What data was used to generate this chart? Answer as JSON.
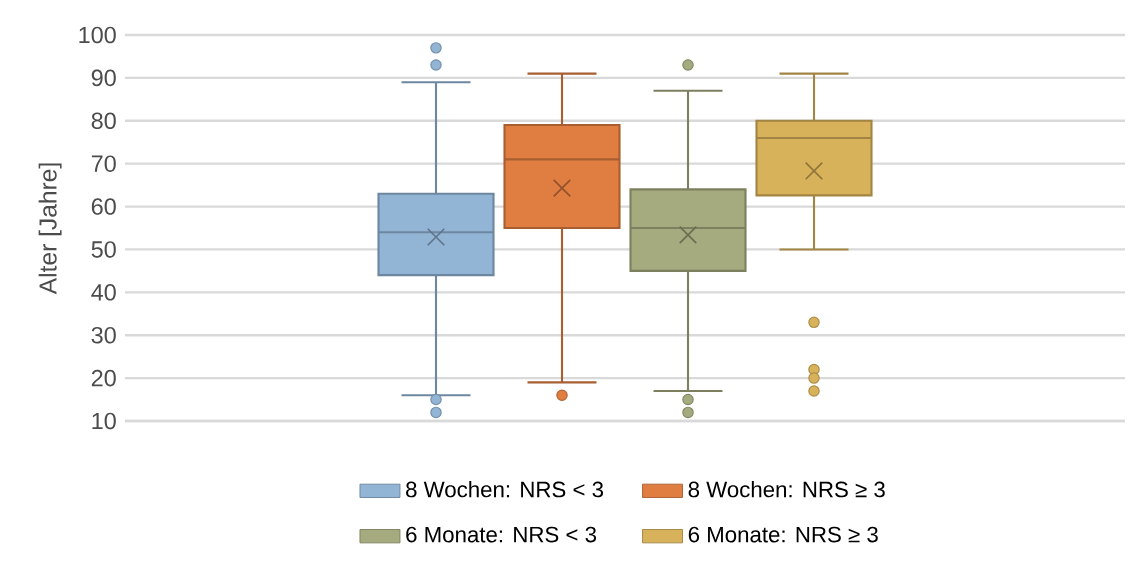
{
  "chart_data": {
    "type": "box",
    "ylabel": "Alter [Jahre]",
    "categories": [
      null
    ],
    "series": [
      {
        "name": "8 Wochen: NRS < 3",
        "color": "#92b4d5",
        "boxes": [
          {
            "low": 16,
            "q1": 44,
            "median": 54,
            "q3": 63,
            "high": 89,
            "mean": 52.9,
            "outliers": [
              97,
              93,
              15,
              12
            ]
          }
        ]
      },
      {
        "name": "8 Wochen: NRS ≥ 3",
        "color": "#e07e42",
        "boxes": [
          {
            "low": 19,
            "q1": 55,
            "median": 71,
            "q3": 79,
            "high": 91,
            "mean": 64.3,
            "outliers": [
              16
            ]
          }
        ]
      },
      {
        "name": "6 Monate: NRS < 3",
        "color": "#a5ab7e",
        "boxes": [
          {
            "low": 17,
            "q1": 45,
            "median": 55,
            "q3": 64,
            "high": 87,
            "mean": 53.4,
            "outliers": [
              93,
              15,
              12
            ]
          }
        ]
      },
      {
        "name": "6 Monate: NRS ≥ 3",
        "color": "#d8b25a",
        "boxes": [
          {
            "low": 50,
            "q1": 62.6,
            "median": 76,
            "q3": 80,
            "high": 91,
            "mean": 68.3,
            "outliers": [
              33,
              22,
              20,
              17
            ]
          }
        ]
      }
    ],
    "ylim": [
      10,
      100
    ],
    "yticks": [
      10,
      20,
      30,
      40,
      50,
      60,
      70,
      80,
      90,
      100
    ],
    "grid": "y",
    "legend": "bottom"
  }
}
